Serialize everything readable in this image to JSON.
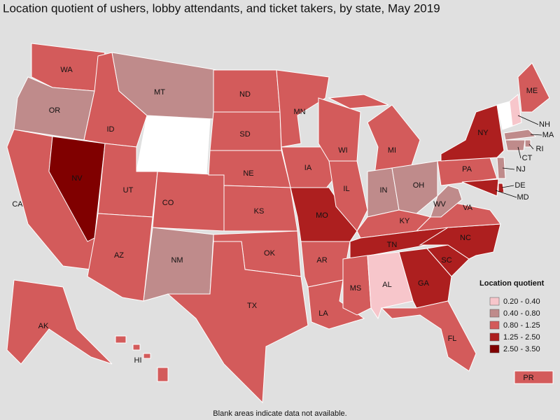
{
  "map": {
    "title": "Location quotient of ushers, lobby attendants, and ticket takers, by state, May 2019",
    "footnote": "Blank areas indicate data not available.",
    "legend": {
      "title": "Location quotient",
      "items": [
        {
          "label": "0.20 - 0.40",
          "color": "#f7c6cb"
        },
        {
          "label": "0.40 - 0.80",
          "color": "#bf8b8b"
        },
        {
          "label": "0.80 - 1.25",
          "color": "#d35b5b"
        },
        {
          "label": "1.25 - 2.50",
          "color": "#ad1f1f"
        },
        {
          "label": "2.50 - 3.50",
          "color": "#800000"
        }
      ]
    },
    "blank_color": "#ffffff",
    "states": [
      {
        "label": "WA",
        "class": 2
      },
      {
        "label": "OR",
        "class": 1
      },
      {
        "label": "CA",
        "class": 2
      },
      {
        "label": "NV",
        "class": 4
      },
      {
        "label": "ID",
        "class": 2
      },
      {
        "label": "MT",
        "class": 1
      },
      {
        "label": "UT",
        "class": 2
      },
      {
        "label": "AZ",
        "class": 2
      },
      {
        "label": "CO",
        "class": 2
      },
      {
        "label": "NM",
        "class": 1
      },
      {
        "label": "ND",
        "class": 2
      },
      {
        "label": "SD",
        "class": 2
      },
      {
        "label": "NE",
        "class": 2
      },
      {
        "label": "KS",
        "class": 2
      },
      {
        "label": "OK",
        "class": 2
      },
      {
        "label": "TX",
        "class": 2
      },
      {
        "label": "MN",
        "class": 2
      },
      {
        "label": "IA",
        "class": 2
      },
      {
        "label": "MO",
        "class": 3
      },
      {
        "label": "AR",
        "class": 2
      },
      {
        "label": "LA",
        "class": 2
      },
      {
        "label": "WI",
        "class": 2
      },
      {
        "label": "IL",
        "class": 2
      },
      {
        "label": "MI",
        "class": 2
      },
      {
        "label": "IN",
        "class": 1
      },
      {
        "label": "OH",
        "class": 1
      },
      {
        "label": "KY",
        "class": 2
      },
      {
        "label": "TN",
        "class": 3
      },
      {
        "label": "MS",
        "class": 2
      },
      {
        "label": "AL",
        "class": 0
      },
      {
        "label": "GA",
        "class": 3
      },
      {
        "label": "FL",
        "class": 2
      },
      {
        "label": "SC",
        "class": 3
      },
      {
        "label": "NC",
        "class": 3
      },
      {
        "label": "VA",
        "class": 2
      },
      {
        "label": "WV",
        "class": 1
      },
      {
        "label": "PA",
        "class": 2
      },
      {
        "label": "NY",
        "class": 3
      },
      {
        "label": "ME",
        "class": 2
      },
      {
        "label": "NH",
        "class": 0
      },
      {
        "label": "MA",
        "class": 1
      },
      {
        "label": "RI",
        "class": 1
      },
      {
        "label": "CT",
        "class": 1
      },
      {
        "label": "NJ",
        "class": 1
      },
      {
        "label": "DE",
        "class": 3
      },
      {
        "label": "MD",
        "class": 3
      },
      {
        "label": "AK",
        "class": 2
      },
      {
        "label": "HI",
        "class": 2
      },
      {
        "label": "PR",
        "class": 2
      }
    ]
  }
}
